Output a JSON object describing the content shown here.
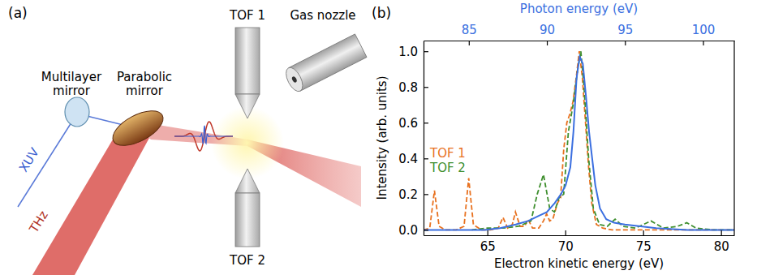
{
  "diagram": {
    "panel_label": "(a)",
    "labels": {
      "multilayer_mirror": "Multilayer mirror",
      "parabolic_mirror": "Parabolic mirror",
      "tof1": "TOF 1",
      "gas_nozzle": "Gas nozzle",
      "xuv": "XUV",
      "thz": "THz",
      "tof2": "TOF 2"
    }
  },
  "chart_data": {
    "type": "line",
    "panel_label": "(b)",
    "xlabel": "Electron kinetic energy (eV)",
    "x2label": "Photon energy (eV)",
    "ylabel": "Intensity (arb. units)",
    "xlim": [
      60.9,
      80.85
    ],
    "xticks": [
      65,
      70,
      75,
      80
    ],
    "x2lim": [
      82.1,
      102.0
    ],
    "x2ticks": [
      85,
      90,
      95,
      100
    ],
    "ylim": [
      -0.03,
      1.06
    ],
    "yticks": [
      {
        "value": 0,
        "label": "0.0"
      },
      {
        "value": 0.2,
        "label": "0.2"
      },
      {
        "value": 0.4,
        "label": "0.4"
      },
      {
        "value": 0.6,
        "label": "0.6"
      },
      {
        "value": 0.8,
        "label": "0.8"
      },
      {
        "value": 1,
        "label": "1.0"
      }
    ],
    "legend": "left",
    "series": [
      {
        "name": "TOF 1",
        "color": "#e8711f",
        "line_style": "dashed",
        "x": [
          60.9,
          61.3,
          61.6,
          61.9,
          62.3,
          63.0,
          63.5,
          63.8,
          64.1,
          64.6,
          65.2,
          65.7,
          66.0,
          66.3,
          66.6,
          66.8,
          67.1,
          67.4,
          67.6,
          67.9,
          68.3,
          68.6,
          68.8,
          69.0,
          69.2,
          69.5,
          69.7,
          69.9,
          70.1,
          70.3,
          70.5,
          70.7,
          70.9,
          71.1,
          71.3,
          71.5,
          71.7,
          72.0,
          72.4,
          73.0,
          74.0,
          76.0,
          78.0,
          80.8
        ],
        "values": [
          0.0,
          0.01,
          0.22,
          0.02,
          0.0,
          0.0,
          0.02,
          0.29,
          0.03,
          0.0,
          0.0,
          0.01,
          0.07,
          0.01,
          0.03,
          0.1,
          0.02,
          0.02,
          0.06,
          0.01,
          0.01,
          0.05,
          0.09,
          0.05,
          0.06,
          0.15,
          0.18,
          0.45,
          0.6,
          0.65,
          0.72,
          0.85,
          1.0,
          0.85,
          0.6,
          0.35,
          0.15,
          0.03,
          0.01,
          0.0,
          0.0,
          0.0,
          0.0,
          0.0
        ]
      },
      {
        "name": "TOF 2",
        "color": "#3f8f2f",
        "line_style": "dashed",
        "x": [
          64.0,
          65.0,
          66.0,
          67.0,
          67.8,
          68.2,
          68.6,
          69.0,
          69.3,
          69.6,
          69.9,
          70.2,
          70.5,
          70.8,
          71.0,
          71.2,
          71.5,
          71.8,
          72.2,
          72.7,
          73.2,
          73.7,
          74.5,
          75.5,
          76.3,
          77.2,
          77.8,
          78.4,
          79.5,
          80.8
        ],
        "values": [
          0.0,
          0.01,
          0.01,
          0.02,
          0.05,
          0.2,
          0.31,
          0.12,
          0.1,
          0.18,
          0.2,
          0.55,
          0.7,
          0.9,
          1.0,
          0.8,
          0.4,
          0.12,
          0.03,
          0.02,
          0.06,
          0.02,
          0.01,
          0.05,
          0.01,
          0.02,
          0.04,
          0.01,
          0.0,
          0.0
        ]
      },
      {
        "color": "#3b6fe0",
        "line_style": "solid",
        "axis": "x2",
        "x": [
          82.1,
          84,
          86,
          87,
          88,
          88.8,
          89.5,
          90.0,
          90.5,
          90.9,
          91.2,
          91.5,
          91.7,
          91.9,
          92.1,
          92.3,
          92.5,
          92.7,
          92.9,
          93.1,
          93.4,
          93.8,
          94.3,
          95,
          96,
          97,
          99,
          102
        ],
        "values": [
          0,
          0,
          0,
          0.01,
          0.03,
          0.05,
          0.08,
          0.1,
          0.15,
          0.2,
          0.25,
          0.35,
          0.55,
          0.85,
          0.97,
          0.93,
          0.75,
          0.55,
          0.4,
          0.25,
          0.12,
          0.06,
          0.04,
          0.03,
          0.02,
          0.01,
          0,
          0
        ]
      }
    ]
  }
}
